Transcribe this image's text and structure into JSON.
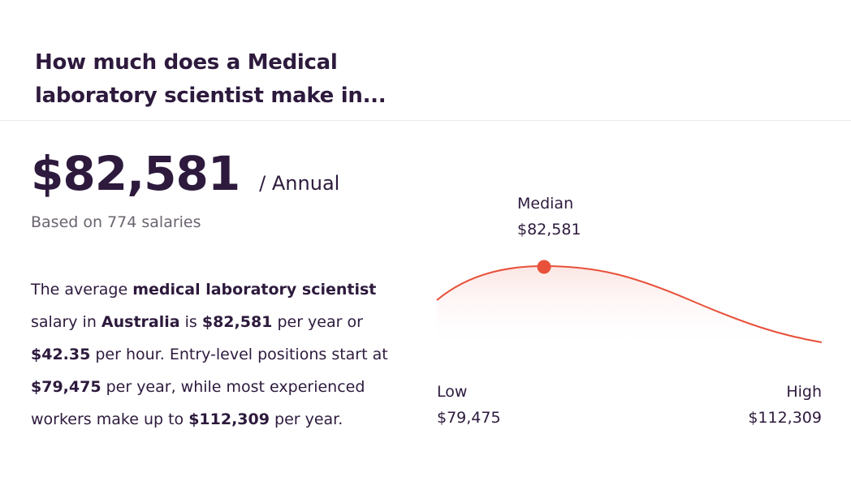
{
  "header": {
    "title_line1": "How much does a Medical",
    "title_line2": "laboratory scientist make in..."
  },
  "salary": {
    "amount": "$82,581",
    "period": "/ Annual",
    "based_on": "Based on 774 salaries"
  },
  "description": {
    "t1": "The average ",
    "job": "medical laboratory scientist",
    "t2": " salary in ",
    "location": "Australia",
    "t3": " is ",
    "yearly": "$82,581",
    "t4": " per year or ",
    "hourly": "$42.35",
    "t5": " per hour. Entry-level positions start at ",
    "entry": "$79,475",
    "t6": " per year, while most experienced workers make up to ",
    "top": "$112,309",
    "t7": " per year."
  },
  "chart_data": {
    "type": "area",
    "median_label": "Median",
    "median_value": "$82,581",
    "low_label": "Low",
    "low_value": "$79,475",
    "high_label": "High",
    "high_value": "$112,309",
    "x": [
      79475,
      82581,
      112309
    ],
    "line_color": "#e8513a"
  }
}
